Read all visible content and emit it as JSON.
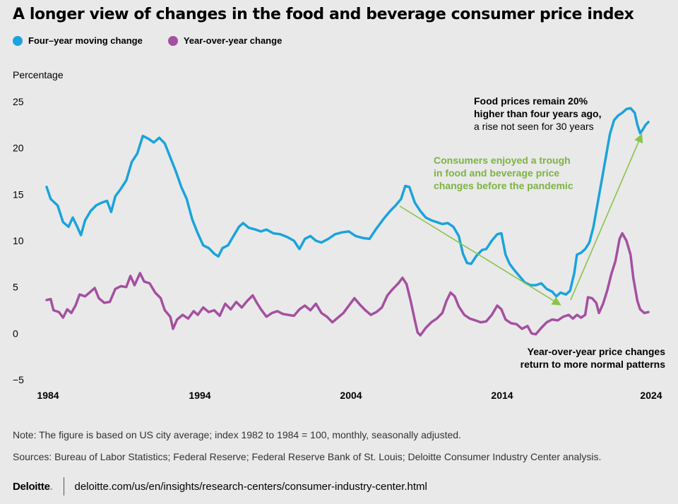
{
  "title": "A longer view of changes in the food and beverage consumer price index",
  "legend": [
    {
      "label": "Four–year moving change",
      "color": "#1aa3dc"
    },
    {
      "label": "Year-over-year change",
      "color": "#a450a0"
    }
  ],
  "ylabel": "Percentage",
  "note": "Note: The figure is based on US city average; index 1982 to 1984 = 100, monthly, seasonally adjusted.",
  "sources": "Sources: Bureau of Labor Statistics; Federal Reserve; Federal Reserve Bank of St. Louis; Deloitte Consumer Industry Center analysis.",
  "footer": {
    "logo": "Deloitte",
    "logo_dot": ".",
    "url": "deloitte.com/us/en/insights/research-centers/consumer-industry-center.html"
  },
  "chart_data": {
    "type": "line",
    "xlim": [
      1984,
      2024.5
    ],
    "ylim": [
      -5,
      25
    ],
    "yticks": [
      25,
      20,
      15,
      10,
      5,
      0,
      -5
    ],
    "ytick_labels": [
      "25",
      "20",
      "15",
      "10",
      "5",
      "0",
      "−5"
    ],
    "xticks": [
      1984,
      1994,
      2004,
      2014,
      2024
    ],
    "xtick_labels": [
      "1984",
      "1994",
      "2004",
      "2014",
      "2024"
    ],
    "series": [
      {
        "name": "Four–year moving change",
        "color": "#1aa3dc",
        "points": [
          [
            1984,
            15.8
          ],
          [
            1984.3,
            14.5
          ],
          [
            1984.8,
            13.8
          ],
          [
            1985.2,
            12
          ],
          [
            1985.6,
            11.5
          ],
          [
            1985.9,
            12.5
          ],
          [
            1986.2,
            11.6
          ],
          [
            1986.5,
            10.6
          ],
          [
            1986.8,
            12.2
          ],
          [
            1987.2,
            13.2
          ],
          [
            1987.6,
            13.8
          ],
          [
            1988,
            14.1
          ],
          [
            1988.4,
            14.3
          ],
          [
            1988.7,
            13.1
          ],
          [
            1989,
            14.8
          ],
          [
            1989.4,
            15.6
          ],
          [
            1989.8,
            16.5
          ],
          [
            1990.2,
            18.5
          ],
          [
            1990.6,
            19.4
          ],
          [
            1991,
            21.3
          ],
          [
            1991.4,
            21.0
          ],
          [
            1991.8,
            20.6
          ],
          [
            1992.2,
            21.1
          ],
          [
            1992.6,
            20.5
          ],
          [
            1993,
            19.0
          ],
          [
            1993.4,
            17.5
          ],
          [
            1993.8,
            15.8
          ],
          [
            1994.2,
            14.5
          ],
          [
            1994.6,
            12.3
          ],
          [
            1995,
            10.8
          ],
          [
            1995.4,
            9.5
          ],
          [
            1995.8,
            9.2
          ],
          [
            1996.2,
            8.6
          ],
          [
            1996.5,
            8.3
          ],
          [
            1996.8,
            9.2
          ],
          [
            1997.2,
            9.5
          ],
          [
            1997.6,
            10.5
          ],
          [
            1998,
            11.5
          ],
          [
            1998.3,
            11.9
          ],
          [
            1998.7,
            11.4
          ],
          [
            1999.2,
            11.2
          ],
          [
            1999.6,
            11.0
          ],
          [
            2000,
            11.2
          ],
          [
            2000.5,
            10.8
          ],
          [
            2001,
            10.7
          ],
          [
            2001.5,
            10.4
          ],
          [
            2002,
            10.0
          ],
          [
            2002.4,
            9.1
          ],
          [
            2002.8,
            10.2
          ],
          [
            2003.2,
            10.5
          ],
          [
            2003.6,
            10.0
          ],
          [
            2004,
            9.8
          ],
          [
            2004.5,
            10.2
          ],
          [
            2005,
            10.7
          ],
          [
            2005.5,
            10.9
          ],
          [
            2006,
            11.0
          ],
          [
            2006.5,
            10.5
          ],
          [
            2007,
            10.3
          ],
          [
            2007.5,
            10.2
          ],
          [
            2008,
            11.3
          ],
          [
            2008.5,
            12.3
          ],
          [
            2009,
            13.2
          ],
          [
            2009.4,
            13.8
          ],
          [
            2009.8,
            14.5
          ],
          [
            2010.1,
            15.9
          ],
          [
            2010.4,
            15.8
          ],
          [
            2010.8,
            14.1
          ],
          [
            2011.2,
            13.2
          ],
          [
            2011.6,
            12.5
          ],
          [
            2012,
            12.2
          ],
          [
            2012.4,
            12.0
          ],
          [
            2012.8,
            11.8
          ],
          [
            2013.2,
            11.9
          ],
          [
            2013.6,
            11.5
          ],
          [
            2014,
            10.5
          ],
          [
            2014.3,
            8.6
          ],
          [
            2014.6,
            7.6
          ],
          [
            2014.9,
            7.5
          ],
          [
            2015.3,
            8.4
          ],
          [
            2015.7,
            9.0
          ],
          [
            2016,
            9.1
          ],
          [
            2016.4,
            10.0
          ],
          [
            2016.8,
            10.7
          ],
          [
            2017.1,
            10.8
          ],
          [
            2017.4,
            8.5
          ],
          [
            2017.7,
            7.5
          ],
          [
            2018,
            6.9
          ],
          [
            2018.4,
            6.2
          ],
          [
            2018.8,
            5.5
          ],
          [
            2019.2,
            5.2
          ],
          [
            2019.6,
            5.2
          ],
          [
            2020,
            5.4
          ],
          [
            2020.4,
            4.8
          ],
          [
            2020.8,
            4.5
          ],
          [
            2021.1,
            4.0
          ],
          [
            2021.4,
            4.4
          ],
          [
            2021.8,
            4.2
          ],
          [
            2022.1,
            4.6
          ],
          [
            2022.4,
            6.5
          ],
          [
            2022.6,
            8.5
          ],
          [
            2022.9,
            8.7
          ],
          [
            2023.2,
            9.1
          ],
          [
            2023.5,
            9.8
          ],
          [
            2023.8,
            11.5
          ],
          [
            2024.1,
            14.0
          ],
          [
            2024.4,
            16.5
          ],
          [
            2024.7,
            19.0
          ],
          [
            2025,
            21.5
          ],
          [
            2025.3,
            23.0
          ],
          [
            2025.6,
            23.5
          ],
          [
            2025.9,
            23.8
          ],
          [
            2026.2,
            24.2
          ],
          [
            2026.5,
            24.3
          ],
          [
            2026.8,
            23.8
          ],
          [
            2027.0,
            22.5
          ],
          [
            2027.2,
            21.6
          ],
          [
            2027.4,
            22.0
          ],
          [
            2027.6,
            22.5
          ],
          [
            2027.8,
            22.8
          ]
        ]
      },
      {
        "name": "Year-over-year change",
        "color": "#a450a0",
        "points": [
          [
            1984,
            3.6
          ],
          [
            1984.3,
            3.7
          ],
          [
            1984.5,
            2.5
          ],
          [
            1984.9,
            2.3
          ],
          [
            1985.2,
            1.7
          ],
          [
            1985.5,
            2.6
          ],
          [
            1985.8,
            2.2
          ],
          [
            1986.1,
            3.0
          ],
          [
            1986.4,
            4.2
          ],
          [
            1986.8,
            4.0
          ],
          [
            1987.2,
            4.5
          ],
          [
            1987.5,
            4.9
          ],
          [
            1987.8,
            3.8
          ],
          [
            1988.2,
            3.3
          ],
          [
            1988.6,
            3.4
          ],
          [
            1989,
            4.8
          ],
          [
            1989.4,
            5.1
          ],
          [
            1989.8,
            5.0
          ],
          [
            1990.1,
            6.2
          ],
          [
            1990.4,
            5.2
          ],
          [
            1990.8,
            6.5
          ],
          [
            1991.1,
            5.6
          ],
          [
            1991.5,
            5.4
          ],
          [
            1991.9,
            4.4
          ],
          [
            1992.3,
            3.8
          ],
          [
            1992.6,
            2.5
          ],
          [
            1993,
            1.8
          ],
          [
            1993.2,
            0.5
          ],
          [
            1993.5,
            1.5
          ],
          [
            1993.9,
            2.0
          ],
          [
            1994.3,
            1.6
          ],
          [
            1994.7,
            2.4
          ],
          [
            1995,
            2.0
          ],
          [
            1995.4,
            2.8
          ],
          [
            1995.8,
            2.3
          ],
          [
            1996.2,
            2.5
          ],
          [
            1996.6,
            1.9
          ],
          [
            1997,
            3.2
          ],
          [
            1997.4,
            2.6
          ],
          [
            1997.8,
            3.4
          ],
          [
            1998.2,
            2.8
          ],
          [
            1998.6,
            3.5
          ],
          [
            1999,
            4.1
          ],
          [
            1999.3,
            3.3
          ],
          [
            1999.6,
            2.6
          ],
          [
            2000,
            1.8
          ],
          [
            2000.4,
            2.2
          ],
          [
            2000.8,
            2.4
          ],
          [
            2001.2,
            2.1
          ],
          [
            2001.6,
            2.0
          ],
          [
            2002,
            1.9
          ],
          [
            2002.4,
            2.6
          ],
          [
            2002.8,
            3.0
          ],
          [
            2003.2,
            2.5
          ],
          [
            2003.6,
            3.2
          ],
          [
            2004,
            2.2
          ],
          [
            2004.4,
            1.8
          ],
          [
            2004.8,
            1.2
          ],
          [
            2005.2,
            1.7
          ],
          [
            2005.6,
            2.2
          ],
          [
            2006,
            3.0
          ],
          [
            2006.4,
            3.8
          ],
          [
            2006.8,
            3.1
          ],
          [
            2007.2,
            2.5
          ],
          [
            2007.6,
            2.0
          ],
          [
            2008,
            2.3
          ],
          [
            2008.4,
            2.8
          ],
          [
            2008.8,
            4.1
          ],
          [
            2009.2,
            4.8
          ],
          [
            2009.6,
            5.4
          ],
          [
            2009.9,
            6.0
          ],
          [
            2010.2,
            5.3
          ],
          [
            2010.5,
            3.5
          ],
          [
            2010.8,
            1.4
          ],
          [
            2011,
            0.1
          ],
          [
            2011.2,
            -0.2
          ],
          [
            2011.6,
            0.6
          ],
          [
            2012,
            1.2
          ],
          [
            2012.4,
            1.6
          ],
          [
            2012.8,
            2.2
          ],
          [
            2013.1,
            3.5
          ],
          [
            2013.4,
            4.4
          ],
          [
            2013.7,
            4.0
          ],
          [
            2014,
            2.9
          ],
          [
            2014.4,
            2.0
          ],
          [
            2014.8,
            1.6
          ],
          [
            2015.2,
            1.4
          ],
          [
            2015.6,
            1.2
          ],
          [
            2016,
            1.3
          ],
          [
            2016.4,
            2.0
          ],
          [
            2016.8,
            3.0
          ],
          [
            2017.1,
            2.6
          ],
          [
            2017.4,
            1.5
          ],
          [
            2017.8,
            1.1
          ],
          [
            2018.2,
            1.0
          ],
          [
            2018.6,
            0.5
          ],
          [
            2019,
            0.8
          ],
          [
            2019.3,
            0.0
          ],
          [
            2019.6,
            -0.1
          ],
          [
            2020,
            0.6
          ],
          [
            2020.4,
            1.2
          ],
          [
            2020.8,
            1.5
          ],
          [
            2021.2,
            1.4
          ],
          [
            2021.6,
            1.8
          ],
          [
            2022,
            2.0
          ],
          [
            2022.3,
            1.6
          ],
          [
            2022.6,
            2.0
          ],
          [
            2022.9,
            1.7
          ],
          [
            2023.2,
            2.0
          ],
          [
            2023.4,
            3.9
          ],
          [
            2023.7,
            3.8
          ],
          [
            2024,
            3.3
          ],
          [
            2024.2,
            2.2
          ],
          [
            2024.5,
            3.2
          ],
          [
            2024.8,
            4.6
          ],
          [
            2025.1,
            6.4
          ],
          [
            2025.4,
            7.8
          ],
          [
            2025.7,
            10.2
          ],
          [
            2025.9,
            10.8
          ],
          [
            2026.2,
            10.0
          ],
          [
            2026.5,
            8.5
          ],
          [
            2026.7,
            6.0
          ],
          [
            2027,
            3.5
          ],
          [
            2027.2,
            2.6
          ],
          [
            2027.5,
            2.2
          ],
          [
            2027.8,
            2.3
          ]
        ]
      }
    ],
    "annotations": [
      {
        "lines": [
          "Food prices remain 20%",
          "higher than four years ago,",
          "a rise not seen for 30 years"
        ],
        "bold_lines": 2,
        "color": "#000000"
      },
      {
        "lines": [
          "Consumers enjoyed a trough",
          "in food and beverage price",
          "changes before the pandemic"
        ],
        "bold_lines": 3,
        "color": "#7cb342"
      },
      {
        "lines": [
          "Year-over-year price changes",
          "return to more normal patterns"
        ],
        "bold_lines": 2,
        "color": "#000000"
      }
    ],
    "arrow_color": "#8bc34a"
  }
}
